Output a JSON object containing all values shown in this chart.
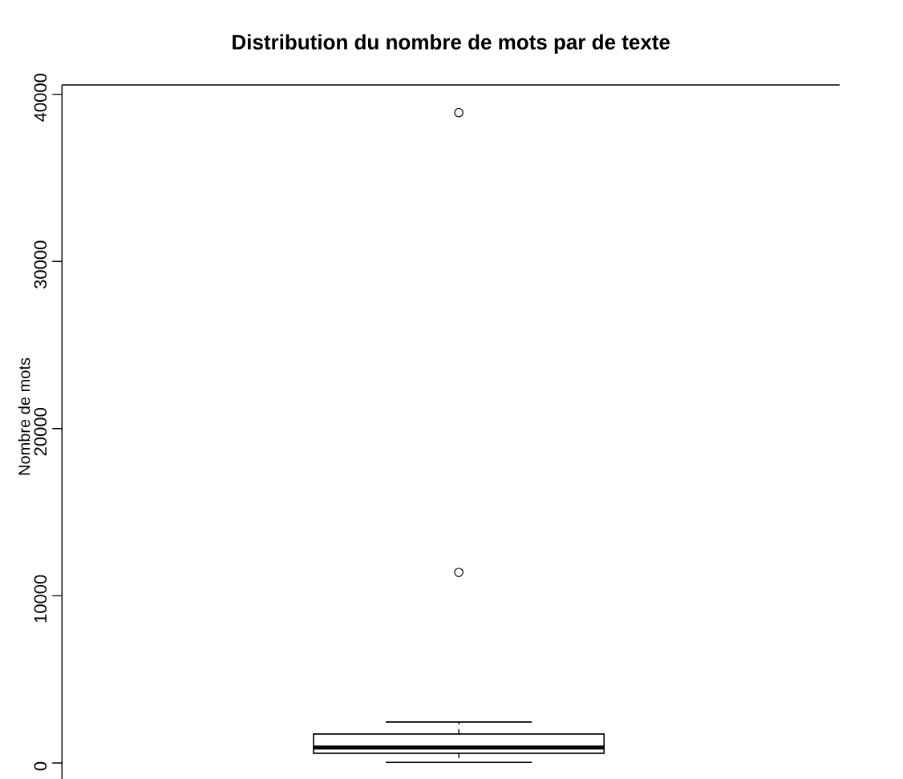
{
  "chart_data": {
    "type": "box",
    "title": "Distribution du nombre de mots par de texte",
    "ylabel": "Nombre de mots",
    "categories": [
      null
    ],
    "boxes": [
      {
        "low": 30,
        "q1": 580,
        "median": 920,
        "q3": 1730,
        "high": 2450,
        "outliers": [
          38900,
          11400
        ]
      }
    ],
    "ylim": [
      -960,
      40560
    ],
    "yticks": [
      0,
      10000,
      20000,
      30000,
      40000
    ],
    "tick_labels": "y",
    "color": "#000000"
  }
}
